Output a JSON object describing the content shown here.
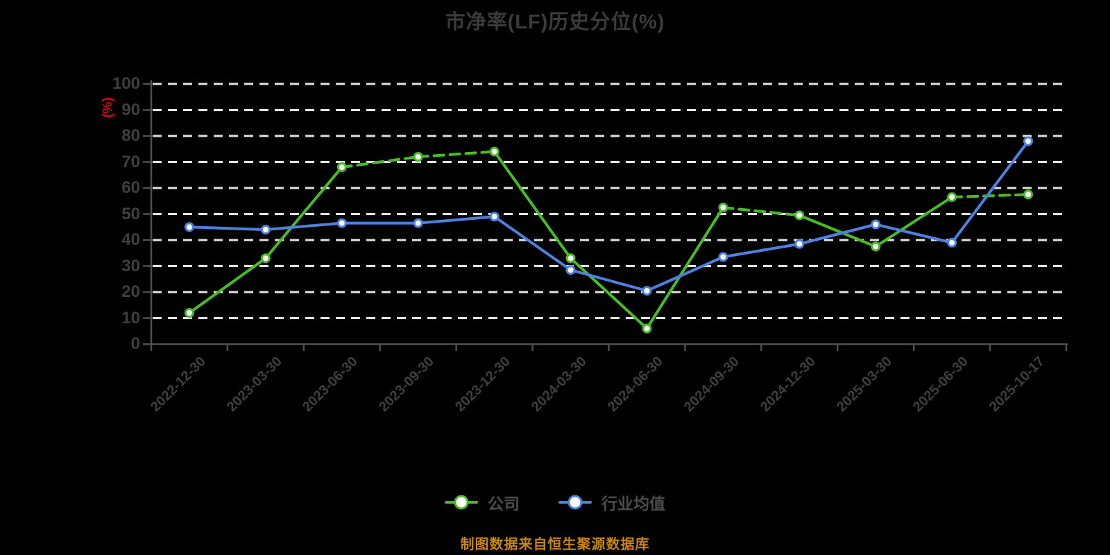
{
  "title": "市净率(LF)历史分位(%)",
  "y_axis_unit": "(%)",
  "footer_note": "制图数据来自恒生聚源数据库",
  "colors": {
    "background": "#000000",
    "title_text": "#3b3b3b",
    "tick_text": "#3f3f3f",
    "axis_line": "#4f4f4f",
    "grid_line": "#e3e3e3",
    "unit_label_red": "#e60008",
    "company_green": "#46be23",
    "industry_blue": "#4b82e1",
    "footer_orange": "#c8860b",
    "legend_text": "#4c4c4c"
  },
  "legend": {
    "items": [
      {
        "key": "company",
        "label": "公司",
        "color": "#46be23"
      },
      {
        "key": "industry-average",
        "label": "行业均值",
        "color": "#4b82e1"
      }
    ]
  },
  "chart_data": {
    "type": "line",
    "title": "市净率(LF)历史分位(%)",
    "xlabel": "",
    "ylabel": "(%)",
    "ylim": [
      0,
      100
    ],
    "y_ticks": [
      0,
      10,
      20,
      30,
      40,
      50,
      60,
      70,
      80,
      90,
      100
    ],
    "grid": true,
    "grid_style": "dashed",
    "legend_position": "bottom",
    "categories": [
      "2022-12-30",
      "2023-03-30",
      "2023-06-30",
      "2023-09-30",
      "2023-12-30",
      "2024-03-30",
      "2024-06-30",
      "2024-09-30",
      "2024-12-30",
      "2025-03-30",
      "2025-06-30",
      "2025-10-17"
    ],
    "series": [
      {
        "key": "company",
        "name": "公司",
        "color": "#46be23",
        "values": [
          12,
          33,
          68,
          72,
          74,
          33,
          6,
          52.5,
          49.5,
          37.5,
          56.5,
          57.5
        ],
        "dashed_segments": [
          2,
          3,
          7,
          10
        ]
      },
      {
        "key": "industry-average",
        "name": "行业均值",
        "color": "#4b82e1",
        "values": [
          45,
          44,
          46.5,
          46.5,
          49,
          28.5,
          20.5,
          33.5,
          38.5,
          46,
          39,
          78
        ],
        "dashed_segments": []
      }
    ]
  }
}
